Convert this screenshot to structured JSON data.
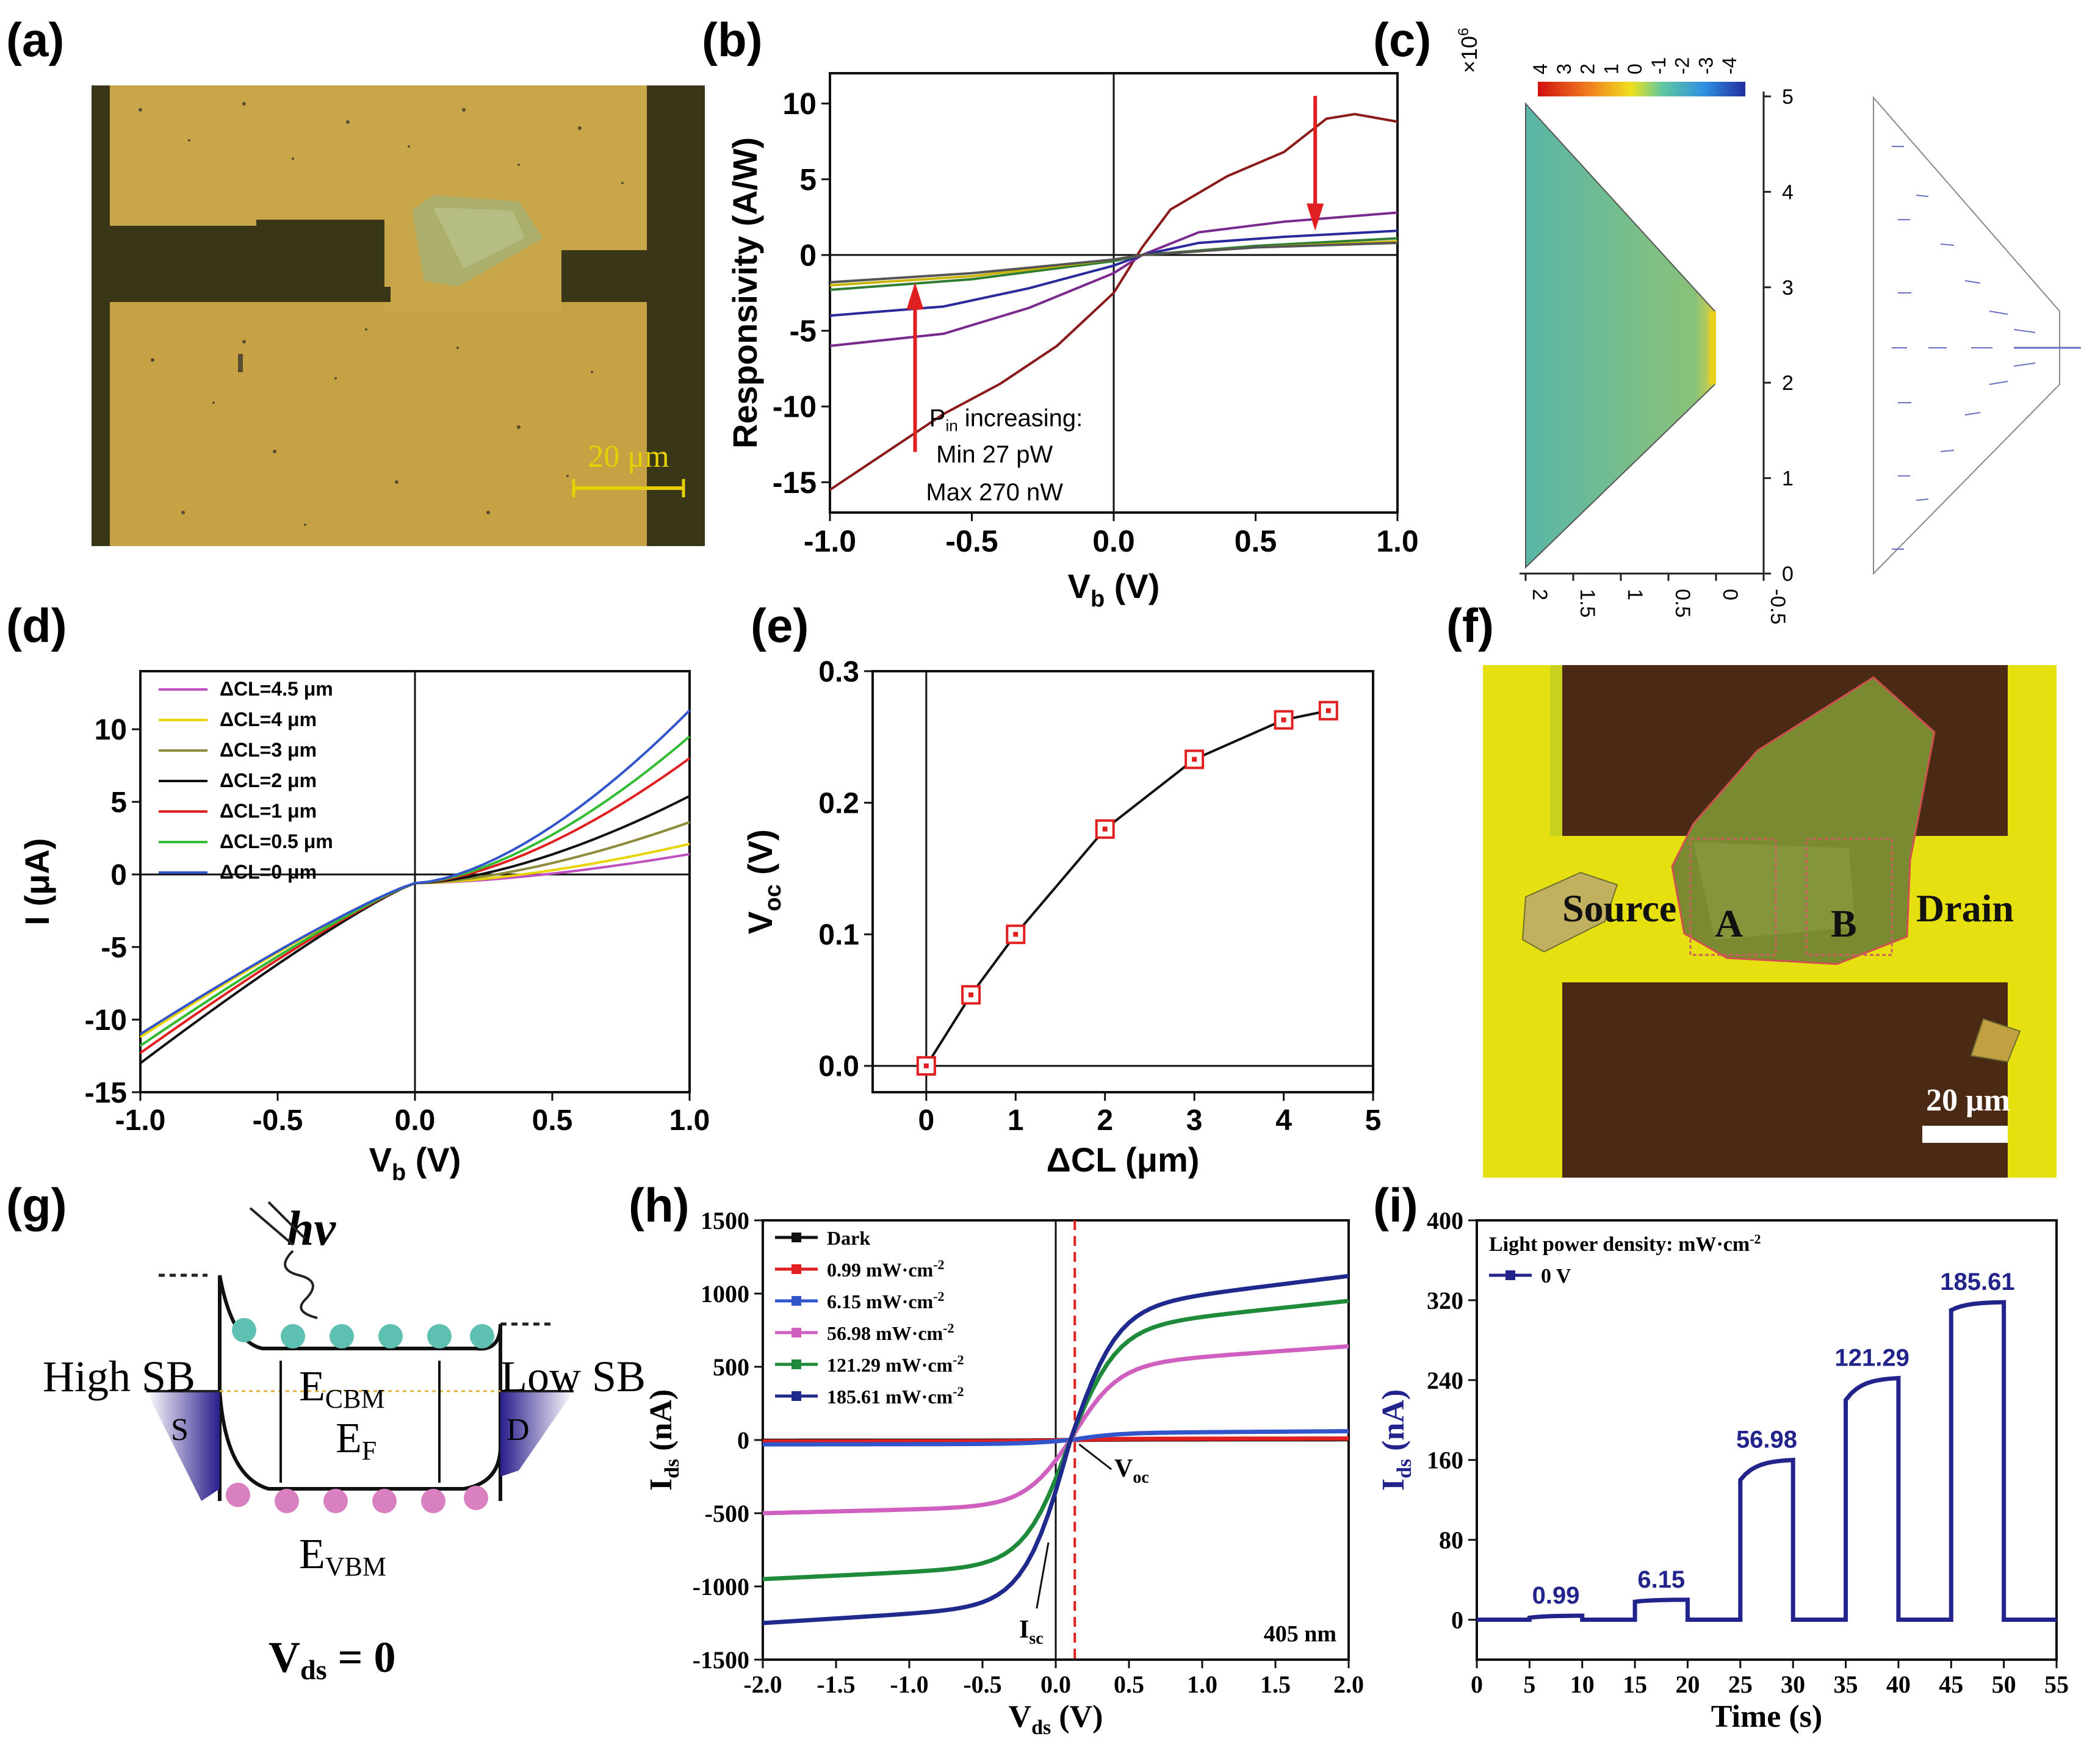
{
  "panels": {
    "a": {
      "label": "(a)",
      "scalebar": "20 μm"
    },
    "b": {
      "label": "(b)",
      "annotation": [
        "P",
        "in",
        " increasing:",
        "Min 27 pW",
        "Max 270 nW"
      ]
    },
    "c": {
      "label": "(c)",
      "exponent": "×10",
      "exponent_power": "6",
      "colorbar_ticks": [
        "4",
        "3",
        "2",
        "1",
        "0",
        "-1",
        "-2",
        "-3",
        "-4"
      ],
      "yticks": [
        "5",
        "4",
        "3",
        "2",
        "1",
        "0"
      ],
      "xticks": [
        "2",
        "1.5",
        "1",
        "0.5",
        "0",
        "-0.5"
      ]
    },
    "d": {
      "label": "(d)"
    },
    "e": {
      "label": "(e)"
    },
    "f": {
      "label": "(f)",
      "source": "Source",
      "drain": "Drain",
      "regionA": "A",
      "regionB": "B",
      "scalebar": "20 μm"
    },
    "g": {
      "label": "(g)",
      "hv": "hv",
      "high_sb": "High SB",
      "low_sb": "Low SB",
      "s": "S",
      "d": "D",
      "ecbm": "E",
      "ecbm_sub": "CBM",
      "ef": "E",
      "ef_sub": "F",
      "evbm": "E",
      "evbm_sub": "VBM",
      "vds": "V",
      "vds_sub": "ds",
      "vds_eq": " = 0"
    },
    "h": {
      "label": "(h)",
      "wavelength": "405 nm",
      "voc": "V",
      "voc_sub": "oc",
      "isc": "I",
      "isc_sub": "sc"
    },
    "i": {
      "label": "(i)",
      "legend_title": "Light power density: mW·cm",
      "legend_title_sup": "-2",
      "legend_series": "0 V",
      "step_labels": [
        "0.99",
        "6.15",
        "56.98",
        "121.29",
        "185.61"
      ]
    }
  },
  "chart_data": [
    {
      "id": "b",
      "type": "line",
      "xlabel": "V",
      "xlabel_sub": "b",
      "xlabel_unit": " (V)",
      "ylabel": "Responsivity (A/W)",
      "xlim": [
        -1.0,
        1.0
      ],
      "ylim": [
        -17,
        12
      ],
      "xticks": [
        "-1.0",
        "-0.5",
        "0.0",
        "0.5",
        "1.0"
      ],
      "yticks": [
        "10",
        "5",
        "0",
        "-5",
        "-10",
        "-15"
      ],
      "series": [
        {
          "color": "#8b1a1a",
          "x": [
            -1.0,
            -0.8,
            -0.6,
            -0.4,
            -0.2,
            0.0,
            0.1,
            0.2,
            0.4,
            0.6,
            0.75,
            0.85,
            1.0
          ],
          "y": [
            -15.5,
            -13.0,
            -10.5,
            -8.5,
            -6.0,
            -2.5,
            0.5,
            3.0,
            5.2,
            6.8,
            9.0,
            9.3,
            8.8
          ]
        },
        {
          "color": "#7a2a8c",
          "x": [
            -1.0,
            -0.6,
            -0.3,
            0.0,
            0.1,
            0.3,
            0.6,
            1.0
          ],
          "y": [
            -6.0,
            -5.2,
            -3.5,
            -1.2,
            0.0,
            1.5,
            2.2,
            2.8
          ]
        },
        {
          "color": "#2a2a9c",
          "x": [
            -1.0,
            -0.6,
            -0.3,
            0.0,
            0.1,
            0.3,
            0.6,
            1.0
          ],
          "y": [
            -4.0,
            -3.4,
            -2.2,
            -0.7,
            0.0,
            0.8,
            1.2,
            1.6
          ]
        },
        {
          "color": "#2e7d32",
          "x": [
            -1.0,
            -0.5,
            0.0,
            0.1,
            0.5,
            1.0
          ],
          "y": [
            -2.3,
            -1.6,
            -0.4,
            0.0,
            0.6,
            1.1
          ]
        },
        {
          "color": "#c9b400",
          "x": [
            -1.0,
            -0.5,
            0.0,
            0.1,
            0.5,
            1.0
          ],
          "y": [
            -2.0,
            -1.4,
            -0.3,
            0.0,
            0.5,
            0.9
          ]
        },
        {
          "color": "#555555",
          "x": [
            -1.0,
            -0.5,
            0.0,
            0.1,
            0.5,
            1.0
          ],
          "y": [
            -1.8,
            -1.2,
            -0.3,
            0.0,
            0.5,
            0.8
          ]
        }
      ]
    },
    {
      "id": "d",
      "type": "line",
      "xlabel": "V",
      "xlabel_sub": "b",
      "xlabel_unit": " (V)",
      "ylabel": "I (μA)",
      "xlim": [
        -1.0,
        1.0
      ],
      "ylim": [
        -15,
        14
      ],
      "xticks": [
        "-1.0",
        "-0.5",
        "0.0",
        "0.5",
        "1.0"
      ],
      "yticks": [
        "10",
        "5",
        "0",
        "-5",
        "-10",
        "-15"
      ],
      "series": [
        {
          "name": "ΔCL=4.5 μm",
          "color": "#c04fc0",
          "y_end": 1.4,
          "y_start": -11.0
        },
        {
          "name": "ΔCL=4 μm",
          "color": "#e8d400",
          "y_end": 2.1,
          "y_start": -11.2
        },
        {
          "name": "ΔCL=3 μm",
          "color": "#8c8c3c",
          "y_end": 3.6,
          "y_start": -11.8
        },
        {
          "name": "ΔCL=2 μm",
          "color": "#111111",
          "y_end": 5.4,
          "y_start": -13.0
        },
        {
          "name": "ΔCL=1 μm",
          "color": "#e02020",
          "y_end": 8.0,
          "y_start": -12.3
        },
        {
          "name": "ΔCL=0.5 μm",
          "color": "#33bb33",
          "y_end": 9.5,
          "y_start": -11.8
        },
        {
          "name": "ΔCL=0 μm",
          "color": "#3355cc",
          "y_end": 11.3,
          "y_start": -11.0
        }
      ]
    },
    {
      "id": "e",
      "type": "line",
      "xlabel": "ΔCL (μm)",
      "ylabel": "V",
      "ylabel_sub": "oc",
      "ylabel_unit": " (V)",
      "xlim": [
        -0.6,
        5.0
      ],
      "ylim": [
        -0.02,
        0.3
      ],
      "xticks": [
        "0",
        "1",
        "2",
        "3",
        "4",
        "5"
      ],
      "yticks": [
        "0.3",
        "0.2",
        "0.1",
        "0.0"
      ],
      "x": [
        0,
        0.5,
        1,
        2,
        3,
        4,
        4.5
      ],
      "y": [
        0.0,
        0.054,
        0.1,
        0.18,
        0.233,
        0.263,
        0.27
      ]
    },
    {
      "id": "h",
      "type": "line",
      "xlabel": "V",
      "xlabel_sub": "ds",
      "xlabel_unit": " (V)",
      "ylabel": "I",
      "ylabel_sub": "ds",
      "ylabel_unit": " (nA)",
      "xlim": [
        -2.0,
        2.0
      ],
      "ylim": [
        -1500,
        1500
      ],
      "xticks": [
        "-2.0",
        "-1.5",
        "-1.0",
        "-0.5",
        "0.0",
        "0.5",
        "1.0",
        "1.5",
        "2.0"
      ],
      "yticks": [
        "1500",
        "1000",
        "500",
        "0",
        "-500",
        "-1000",
        "-1500"
      ],
      "series": [
        {
          "name": "Dark",
          "color": "#111111",
          "start": -5,
          "end": 5
        },
        {
          "name": "0.99 mW·cm",
          "sup": "-2",
          "color": "#e02020",
          "start": -10,
          "end": 10
        },
        {
          "name": "6.15 mW·cm",
          "sup": "-2",
          "color": "#3355cc",
          "start": -30,
          "end": 60
        },
        {
          "name": "56.98 mW·cm",
          "sup": "-2",
          "color": "#d060c0",
          "start": -500,
          "end": 640
        },
        {
          "name": "121.29 mW·cm",
          "sup": "-2",
          "color": "#1e8a3a",
          "start": -950,
          "end": 950
        },
        {
          "name": "185.61 mW·cm",
          "sup": "-2",
          "color": "#1f2a8c",
          "start": -1250,
          "end": 1120
        }
      ]
    },
    {
      "id": "i",
      "type": "line",
      "xlabel": "Time (s)",
      "ylabel": "I",
      "ylabel_sub": "ds",
      "ylabel_unit": " (nA)",
      "xlim": [
        0,
        55
      ],
      "ylim": [
        -40,
        400
      ],
      "xticks": [
        "0",
        "5",
        "10",
        "15",
        "20",
        "25",
        "30",
        "35",
        "40",
        "45",
        "50",
        "55"
      ],
      "yticks": [
        "400",
        "320",
        "240",
        "160",
        "80",
        "0"
      ],
      "pulses": [
        {
          "on": 5,
          "off": 10,
          "low": 2,
          "high": 4
        },
        {
          "on": 15,
          "off": 20,
          "low": 18,
          "high": 20
        },
        {
          "on": 25,
          "off": 30,
          "low": 140,
          "high": 160
        },
        {
          "on": 35,
          "off": 40,
          "low": 220,
          "high": 242
        },
        {
          "on": 45,
          "off": 50,
          "low": 310,
          "high": 318
        }
      ]
    }
  ]
}
